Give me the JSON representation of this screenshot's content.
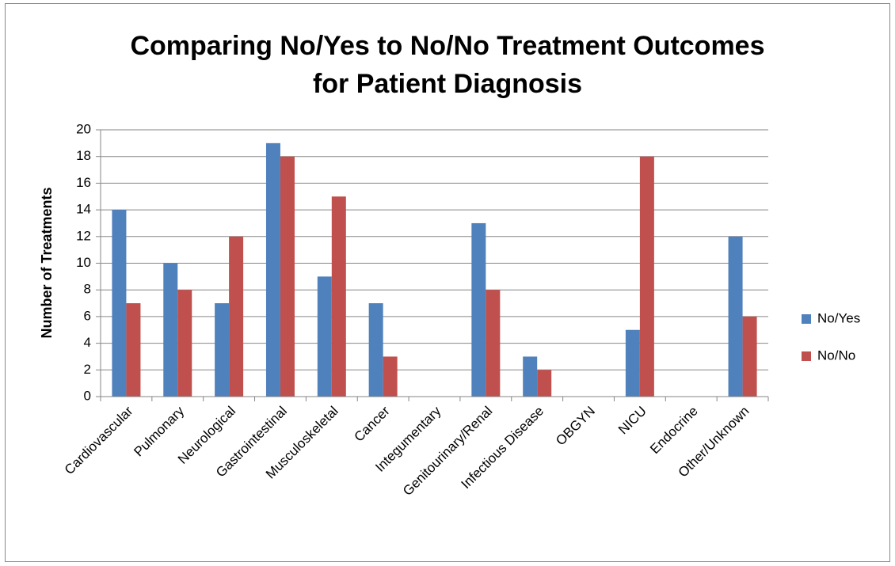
{
  "chart_data": {
    "type": "bar",
    "title": [
      "Comparing No/Yes to No/No Treatment Outcomes",
      "for Patient Diagnosis"
    ],
    "y_label": "Number of Treatments",
    "categories": [
      "Cardiovascular",
      "Pulmonary",
      "Neurological",
      "Gastrointestinal",
      "Musculoskeletal",
      "Cancer",
      "Integumentary",
      "Genitourinary/Renal",
      "Infectious Disease",
      "OBGYN",
      "NICU",
      "Endocrine",
      "Other/Unknown"
    ],
    "series": [
      {
        "name": "No/Yes",
        "color": "#4f81bd",
        "values": [
          14,
          10,
          7,
          19,
          9,
          7,
          0,
          13,
          3,
          0,
          5,
          0,
          12
        ]
      },
      {
        "name": "No/No",
        "color": "#c0504d",
        "values": [
          7,
          8,
          12,
          18,
          15,
          3,
          0,
          8,
          2,
          0,
          18,
          0,
          6
        ]
      }
    ],
    "ylim": [
      0,
      20
    ],
    "yticks": [
      0,
      2,
      4,
      6,
      8,
      10,
      12,
      14,
      16,
      18,
      20
    ],
    "grid": true,
    "legend": "right"
  }
}
